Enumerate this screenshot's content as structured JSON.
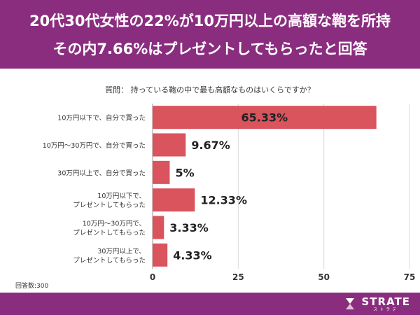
{
  "header": {
    "line1": "20代30代女性の22%が10万円以上の高額な鞄を所持",
    "line2": "その内7.66%はプレゼントしてもらったと回答"
  },
  "question": "質問： 持っている鞄の中で最も高額なものはいくらですか？",
  "respondents": "回答数:300",
  "logo": {
    "main": "STRATE",
    "sub": "ストラテ"
  },
  "colors": {
    "header_bg": "#8b2d7f",
    "bar": "#d9545d",
    "grid": "#d9d9d9"
  },
  "chart_data": {
    "type": "bar",
    "orientation": "horizontal",
    "categories": [
      [
        "10万円以下で、自分で買った"
      ],
      [
        "10万円〜30万円で、自分で買った"
      ],
      [
        "30万円以上で、自分で買った"
      ],
      [
        "10万円以下で、",
        "プレゼントしてもらった"
      ],
      [
        "10万円〜30万円で、",
        "プレゼントしてもらった"
      ],
      [
        "30万円以上で、",
        "プレゼントしてもらった"
      ]
    ],
    "values": [
      65.33,
      9.67,
      5,
      12.33,
      3.33,
      4.33
    ],
    "data_labels": [
      "65.33%",
      "9.67%",
      "5%",
      "12.33%",
      "3.33%",
      "4.33%"
    ],
    "xlim": [
      0,
      75
    ],
    "ticks": [
      0,
      25,
      50,
      75
    ],
    "tick_labels": [
      "0",
      "25",
      "50",
      "75"
    ],
    "grid": true
  }
}
